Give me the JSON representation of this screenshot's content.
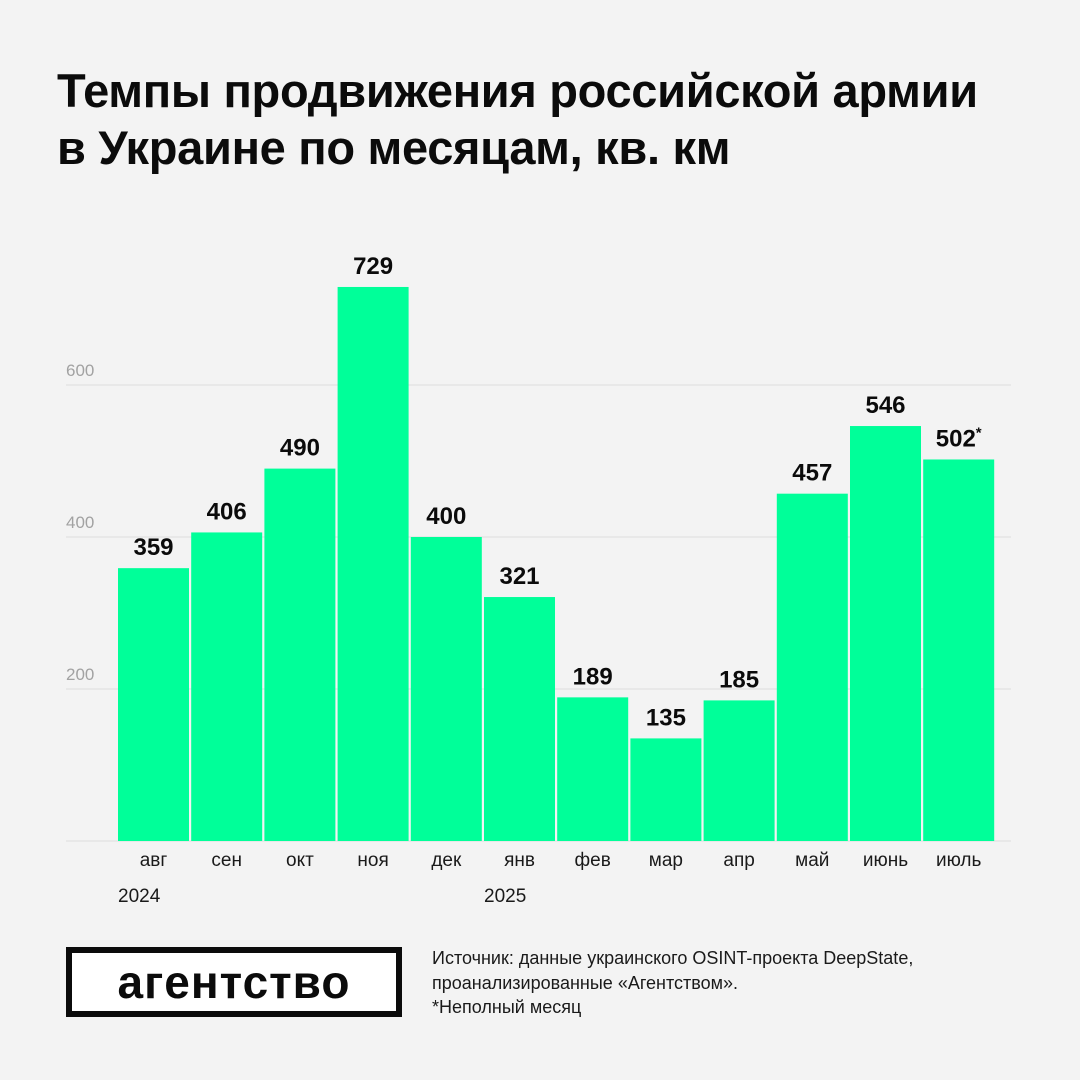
{
  "title": "Темпы продвижения российской армии в Украине по месяцам, кв. км",
  "colors": {
    "bar": "#00ff99",
    "grid": "#dddddd",
    "background": "#f3f3f3",
    "text": "#0b0b0b"
  },
  "chart_data": {
    "type": "bar",
    "title": "Темпы продвижения российской армии в Украине по месяцам, кв. км",
    "categories": [
      "авг",
      "сен",
      "окт",
      "ноя",
      "дек",
      "янв",
      "фев",
      "мар",
      "апр",
      "май",
      "июнь",
      "июль"
    ],
    "values": [
      359,
      406,
      490,
      729,
      400,
      321,
      189,
      135,
      185,
      457,
      546,
      502
    ],
    "value_labels": [
      "359",
      "406",
      "490",
      "729",
      "400",
      "321",
      "189",
      "135",
      "185",
      "457",
      "546",
      "502*"
    ],
    "year_labels": [
      {
        "label": "2024",
        "category": "авг"
      },
      {
        "label": "2025",
        "category": "янв"
      }
    ],
    "y_ticks": [
      200,
      400,
      600
    ],
    "ylim": [
      0,
      800
    ],
    "grid": true,
    "xlabel": "",
    "ylabel": ""
  },
  "logo": {
    "text": "агентство"
  },
  "source": {
    "line1": "Источник: данные украинского OSINT-проекта DeepState,",
    "line2": "проанализированные «Агентством».",
    "note": "*Неполный месяц"
  }
}
